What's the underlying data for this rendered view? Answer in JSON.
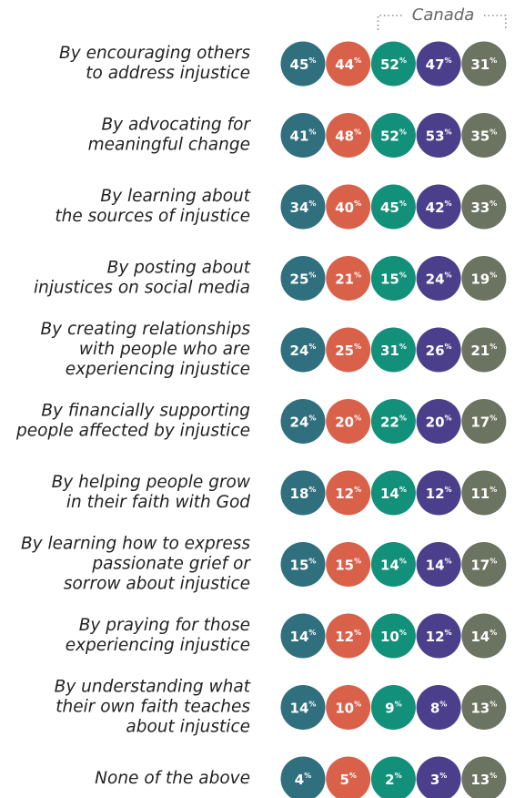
{
  "chart_data": {
    "type": "dot-table",
    "annotation": "Canada",
    "unit": "%",
    "categories": [
      [
        "By encouraging others",
        "to address injustice"
      ],
      [
        "By advocating for",
        "meaningful change"
      ],
      [
        "By learning about",
        "the sources of injustice"
      ],
      [
        "By posting about",
        "injustices on social media"
      ],
      [
        "By creating relationships",
        "with people who are",
        "experiencing injustice"
      ],
      [
        "By financially supporting",
        "people affected by injustice"
      ],
      [
        "By helping people grow",
        "in their faith with God"
      ],
      [
        "By learning how to express",
        "passionate grief or",
        "sorrow about injustice"
      ],
      [
        "By praying for those",
        "experiencing injustice"
      ],
      [
        "By understanding what",
        "their own faith teaches",
        "about injustice"
      ],
      [
        "None of the above"
      ]
    ],
    "series": [
      {
        "color": "#2f6f7e",
        "values": [
          45,
          41,
          34,
          25,
          24,
          24,
          18,
          15,
          14,
          14,
          4
        ]
      },
      {
        "color": "#d9614a",
        "values": [
          44,
          48,
          40,
          21,
          25,
          20,
          12,
          15,
          12,
          10,
          5
        ]
      },
      {
        "color": "#12907a",
        "values": [
          52,
          52,
          45,
          15,
          31,
          22,
          14,
          14,
          10,
          9,
          2
        ]
      },
      {
        "color": "#4b3f8c",
        "values": [
          47,
          53,
          42,
          24,
          26,
          20,
          12,
          14,
          12,
          8,
          3
        ]
      },
      {
        "color": "#6b7460",
        "values": [
          31,
          35,
          33,
          19,
          21,
          17,
          11,
          17,
          14,
          13,
          13
        ]
      }
    ],
    "bracket_series": [
      2,
      4
    ]
  }
}
